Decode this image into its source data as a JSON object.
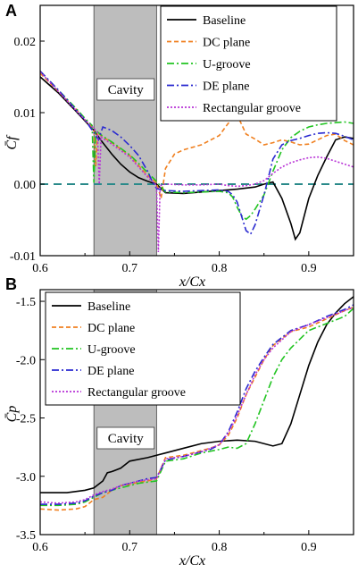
{
  "chart_data": [
    {
      "type": "line",
      "panel_label": "A",
      "xlabel": "x/Cx",
      "ylabel": "C̄f",
      "xlim": [
        0.6,
        0.95
      ],
      "ylim": [
        -0.01,
        0.025
      ],
      "xticks": [
        "0.6",
        "0.7",
        "0.8",
        "0.9"
      ],
      "yticks": [
        "-0.01",
        "0.00",
        "0.01",
        "0.02"
      ],
      "cavity_label": "Cavity",
      "cavity_range": [
        0.66,
        0.73
      ],
      "reference_line": 0.0,
      "reference_color": "#2a8a8a",
      "legend_position": "top-right",
      "series": [
        {
          "name": "Baseline",
          "color": "#000000",
          "dash": "solid",
          "x": [
            0.6,
            0.62,
            0.64,
            0.66,
            0.67,
            0.68,
            0.69,
            0.7,
            0.71,
            0.72,
            0.73,
            0.74,
            0.76,
            0.78,
            0.8,
            0.82,
            0.84,
            0.85,
            0.86,
            0.87,
            0.88,
            0.885,
            0.89,
            0.9,
            0.91,
            0.92,
            0.93,
            0.94,
            0.95
          ],
          "y": [
            0.015,
            0.0128,
            0.0102,
            0.0075,
            0.0058,
            0.0042,
            0.0028,
            0.0017,
            0.0009,
            0.0004,
            0.0,
            -0.0012,
            -0.0013,
            -0.0011,
            -0.0009,
            -0.0007,
            -0.0004,
            0.0,
            0.0003,
            -0.002,
            -0.0055,
            -0.0077,
            -0.0068,
            -0.002,
            0.0012,
            0.0038,
            0.0062,
            0.0066,
            0.0064
          ]
        },
        {
          "name": "DC plane",
          "color": "#f08020",
          "dash": "5,3",
          "x": [
            0.6,
            0.62,
            0.64,
            0.65,
            0.66,
            0.662,
            0.664,
            0.67,
            0.68,
            0.69,
            0.7,
            0.71,
            0.72,
            0.73,
            0.735,
            0.74,
            0.75,
            0.76,
            0.78,
            0.8,
            0.81,
            0.82,
            0.83,
            0.84,
            0.85,
            0.86,
            0.87,
            0.88,
            0.89,
            0.9,
            0.91,
            0.92,
            0.93,
            0.94,
            0.95
          ],
          "y": [
            0.0155,
            0.013,
            0.0105,
            0.009,
            0.0077,
            0.0025,
            0.0072,
            0.0066,
            0.0058,
            0.0049,
            0.004,
            0.0026,
            0.0012,
            0.0002,
            -0.002,
            0.0022,
            0.0042,
            0.0048,
            0.0055,
            0.0068,
            0.0085,
            0.0097,
            0.007,
            0.0063,
            0.0055,
            0.0058,
            0.0062,
            0.0059,
            0.0055,
            0.0056,
            0.0062,
            0.0068,
            0.007,
            0.0061,
            0.0055
          ]
        },
        {
          "name": "U-groove",
          "color": "#22c422",
          "dash": "8,3,2,3",
          "x": [
            0.6,
            0.62,
            0.64,
            0.65,
            0.658,
            0.66,
            0.662,
            0.67,
            0.68,
            0.69,
            0.7,
            0.71,
            0.72,
            0.73,
            0.74,
            0.76,
            0.78,
            0.8,
            0.81,
            0.815,
            0.82,
            0.825,
            0.83,
            0.835,
            0.84,
            0.85,
            0.86,
            0.87,
            0.88,
            0.89,
            0.9,
            0.91,
            0.92,
            0.93,
            0.94,
            0.95
          ],
          "y": [
            0.0158,
            0.0132,
            0.0106,
            0.0092,
            0.0082,
            0.0002,
            0.0075,
            0.0067,
            0.0059,
            0.005,
            0.0041,
            0.0029,
            0.0016,
            0.0004,
            -0.0011,
            -0.0012,
            -0.0011,
            -0.001,
            -0.0012,
            -0.0018,
            -0.0032,
            -0.0044,
            -0.0049,
            -0.0044,
            -0.0035,
            -0.0015,
            0.0018,
            0.0048,
            0.0065,
            0.0074,
            0.008,
            0.0083,
            0.0085,
            0.0086,
            0.0087,
            0.0085
          ]
        },
        {
          "name": "DE plane",
          "color": "#2a2ad0",
          "dash": "8,3,2,3",
          "x": [
            0.6,
            0.62,
            0.64,
            0.65,
            0.66,
            0.665,
            0.67,
            0.68,
            0.69,
            0.7,
            0.71,
            0.72,
            0.725,
            0.73,
            0.735,
            0.74,
            0.76,
            0.78,
            0.8,
            0.81,
            0.815,
            0.82,
            0.825,
            0.83,
            0.835,
            0.84,
            0.85,
            0.86,
            0.87,
            0.88,
            0.89,
            0.9,
            0.91,
            0.92,
            0.93,
            0.94,
            0.95
          ],
          "y": [
            0.0158,
            0.0132,
            0.0104,
            0.009,
            0.0072,
            0.0062,
            0.008,
            0.0075,
            0.0066,
            0.0054,
            0.004,
            0.0018,
            0.0004,
            -0.0006,
            -0.0008,
            -0.0009,
            -0.001,
            -0.0009,
            -0.0008,
            -0.001,
            -0.0015,
            -0.0025,
            -0.0045,
            -0.0065,
            -0.007,
            -0.0057,
            -0.0015,
            0.0035,
            0.0055,
            0.0061,
            0.0064,
            0.0068,
            0.0071,
            0.0072,
            0.0071,
            0.0067,
            0.0062
          ]
        },
        {
          "name": "Rectangular groove",
          "color": "#b833d6",
          "dash": "2,2",
          "x": [
            0.6,
            0.62,
            0.64,
            0.65,
            0.66,
            0.664,
            0.666,
            0.668,
            0.67,
            0.68,
            0.69,
            0.7,
            0.71,
            0.72,
            0.725,
            0.728,
            0.73,
            0.732,
            0.734,
            0.74,
            0.76,
            0.78,
            0.8,
            0.81,
            0.82,
            0.83,
            0.84,
            0.85,
            0.86,
            0.87,
            0.88,
            0.89,
            0.9,
            0.91,
            0.92,
            0.93,
            0.94,
            0.95
          ],
          "y": [
            0.0157,
            0.013,
            0.0103,
            0.009,
            0.0078,
            0.0072,
            0.0,
            0.0066,
            0.0064,
            0.0056,
            0.0047,
            0.0038,
            0.0024,
            0.001,
            0.0004,
            0.0001,
            -0.0003,
            -0.0095,
            -0.0002,
            0.0,
            -0.0001,
            -0.0001,
            0.0,
            -0.0002,
            -0.0003,
            -0.0002,
            0.0,
            0.0005,
            0.0015,
            0.0024,
            0.003,
            0.0034,
            0.0037,
            0.0038,
            0.0036,
            0.0032,
            0.0028,
            0.0024
          ]
        }
      ]
    },
    {
      "type": "line",
      "panel_label": "B",
      "xlabel": "x/Cx",
      "ylabel": "C̄p",
      "xlim": [
        0.6,
        0.95
      ],
      "ylim": [
        -3.5,
        -1.4
      ],
      "xticks": [
        "0.6",
        "0.7",
        "0.8",
        "0.9"
      ],
      "yticks": [
        "-3.5",
        "-3.0",
        "-2.5",
        "-2.0",
        "-1.5"
      ],
      "cavity_label": "Cavity",
      "cavity_range": [
        0.66,
        0.73
      ],
      "legend_position": "top-left",
      "series": [
        {
          "name": "Baseline",
          "color": "#000000",
          "dash": "solid",
          "x": [
            0.6,
            0.63,
            0.65,
            0.66,
            0.67,
            0.675,
            0.68,
            0.69,
            0.7,
            0.72,
            0.74,
            0.76,
            0.78,
            0.8,
            0.82,
            0.84,
            0.86,
            0.87,
            0.88,
            0.89,
            0.9,
            0.91,
            0.92,
            0.93,
            0.94,
            0.95
          ],
          "y": [
            -3.14,
            -3.14,
            -3.12,
            -3.1,
            -3.04,
            -2.97,
            -2.96,
            -2.93,
            -2.87,
            -2.84,
            -2.8,
            -2.76,
            -2.72,
            -2.7,
            -2.69,
            -2.7,
            -2.74,
            -2.72,
            -2.55,
            -2.3,
            -2.05,
            -1.85,
            -1.7,
            -1.6,
            -1.52,
            -1.46
          ]
        },
        {
          "name": "DC plane",
          "color": "#f08020",
          "dash": "5,3",
          "x": [
            0.6,
            0.62,
            0.64,
            0.65,
            0.66,
            0.67,
            0.68,
            0.69,
            0.7,
            0.71,
            0.72,
            0.73,
            0.74,
            0.76,
            0.78,
            0.79,
            0.8,
            0.81,
            0.82,
            0.83,
            0.84,
            0.85,
            0.86,
            0.88,
            0.9,
            0.92,
            0.94,
            0.95
          ],
          "y": [
            -3.28,
            -3.29,
            -3.28,
            -3.26,
            -3.2,
            -3.18,
            -3.12,
            -3.08,
            -3.07,
            -3.05,
            -3.04,
            -3.02,
            -2.84,
            -2.82,
            -2.78,
            -2.76,
            -2.73,
            -2.65,
            -2.5,
            -2.3,
            -2.15,
            -2.0,
            -1.88,
            -1.76,
            -1.72,
            -1.65,
            -1.58,
            -1.55
          ]
        },
        {
          "name": "U-groove",
          "color": "#22c422",
          "dash": "8,3,2,3",
          "x": [
            0.6,
            0.62,
            0.64,
            0.65,
            0.66,
            0.67,
            0.68,
            0.69,
            0.7,
            0.71,
            0.72,
            0.73,
            0.74,
            0.76,
            0.78,
            0.8,
            0.81,
            0.82,
            0.83,
            0.84,
            0.85,
            0.86,
            0.87,
            0.88,
            0.9,
            0.92,
            0.94,
            0.95
          ],
          "y": [
            -3.25,
            -3.25,
            -3.24,
            -3.22,
            -3.18,
            -3.14,
            -3.12,
            -3.1,
            -3.08,
            -3.06,
            -3.05,
            -3.04,
            -2.87,
            -2.85,
            -2.8,
            -2.77,
            -2.75,
            -2.76,
            -2.72,
            -2.55,
            -2.35,
            -2.15,
            -2.0,
            -1.9,
            -1.75,
            -1.69,
            -1.63,
            -1.56
          ]
        },
        {
          "name": "DE plane",
          "color": "#2a2ad0",
          "dash": "8,3,2,3",
          "x": [
            0.6,
            0.62,
            0.64,
            0.65,
            0.66,
            0.67,
            0.68,
            0.69,
            0.7,
            0.71,
            0.72,
            0.73,
            0.74,
            0.76,
            0.78,
            0.79,
            0.8,
            0.81,
            0.82,
            0.83,
            0.84,
            0.85,
            0.86,
            0.88,
            0.9,
            0.92,
            0.94,
            0.95
          ],
          "y": [
            -3.24,
            -3.24,
            -3.23,
            -3.21,
            -3.17,
            -3.14,
            -3.12,
            -3.08,
            -3.06,
            -3.04,
            -3.02,
            -3.01,
            -2.86,
            -2.83,
            -2.79,
            -2.77,
            -2.73,
            -2.62,
            -2.45,
            -2.25,
            -2.1,
            -1.98,
            -1.87,
            -1.75,
            -1.7,
            -1.63,
            -1.57,
            -1.53
          ]
        },
        {
          "name": "Rectangular groove",
          "color": "#b833d6",
          "dash": "2,2",
          "x": [
            0.6,
            0.62,
            0.64,
            0.65,
            0.66,
            0.67,
            0.68,
            0.69,
            0.7,
            0.71,
            0.72,
            0.73,
            0.74,
            0.76,
            0.78,
            0.8,
            0.81,
            0.82,
            0.83,
            0.84,
            0.85,
            0.86,
            0.88,
            0.9,
            0.92,
            0.94,
            0.95
          ],
          "y": [
            -3.22,
            -3.23,
            -3.22,
            -3.2,
            -3.16,
            -3.13,
            -3.11,
            -3.08,
            -3.06,
            -3.04,
            -3.03,
            -3.02,
            -2.85,
            -2.83,
            -2.79,
            -2.73,
            -2.63,
            -2.48,
            -2.3,
            -2.13,
            -2.0,
            -1.9,
            -1.76,
            -1.7,
            -1.64,
            -1.58,
            -1.55
          ]
        }
      ]
    }
  ]
}
